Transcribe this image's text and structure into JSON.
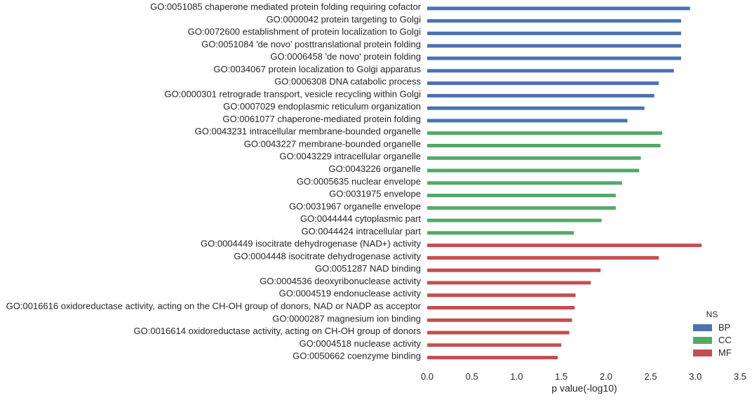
{
  "chart_data": {
    "type": "bar",
    "orientation": "horizontal",
    "xlabel": "p value(-log10)",
    "xlim": [
      0,
      3.5
    ],
    "xticks": [
      "0.0",
      "0.5",
      "1.0",
      "1.5",
      "2.0",
      "2.5",
      "3.0",
      "3.5"
    ],
    "grid": false,
    "legend": {
      "title": "NS",
      "placement": "bottom-right",
      "entries": [
        {
          "name": "BP",
          "color": "#4c72b0"
        },
        {
          "name": "CC",
          "color": "#55a868"
        },
        {
          "name": "MF",
          "color": "#c44e52"
        }
      ]
    },
    "bars": [
      {
        "label": "GO:0051085 chaperone mediated protein folding requiring cofactor",
        "value": 2.94,
        "group": "BP"
      },
      {
        "label": "GO:0000042 protein targeting to Golgi",
        "value": 2.84,
        "group": "BP"
      },
      {
        "label": "GO:0072600 establishment of protein localization to Golgi",
        "value": 2.84,
        "group": "BP"
      },
      {
        "label": "GO:0051084 'de novo' posttranslational protein folding",
        "value": 2.84,
        "group": "BP"
      },
      {
        "label": "GO:0006458 'de novo' protein folding",
        "value": 2.84,
        "group": "BP"
      },
      {
        "label": "GO:0034067 protein localization to Golgi apparatus",
        "value": 2.76,
        "group": "BP"
      },
      {
        "label": "GO:0006308 DNA catabolic process",
        "value": 2.59,
        "group": "BP"
      },
      {
        "label": "GO:0000301 retrograde transport, vesicle recycling within Golgi",
        "value": 2.54,
        "group": "BP"
      },
      {
        "label": "GO:0007029 endoplasmic reticulum organization",
        "value": 2.43,
        "group": "BP"
      },
      {
        "label": "GO:0061077 chaperone-mediated protein folding",
        "value": 2.24,
        "group": "BP"
      },
      {
        "label": "GO:0043231 intracellular membrane-bounded organelle",
        "value": 2.63,
        "group": "CC"
      },
      {
        "label": "GO:0043227 membrane-bounded organelle",
        "value": 2.61,
        "group": "CC"
      },
      {
        "label": "GO:0043229 intracellular organelle",
        "value": 2.39,
        "group": "CC"
      },
      {
        "label": "GO:0043226 organelle",
        "value": 2.37,
        "group": "CC"
      },
      {
        "label": "GO:0005635 nuclear envelope",
        "value": 2.18,
        "group": "CC"
      },
      {
        "label": "GO:0031975 envelope",
        "value": 2.11,
        "group": "CC"
      },
      {
        "label": "GO:0031967 organelle envelope",
        "value": 2.11,
        "group": "CC"
      },
      {
        "label": "GO:0044444 cytoplasmic part",
        "value": 1.95,
        "group": "CC"
      },
      {
        "label": "GO:0044424 intracellular part",
        "value": 1.64,
        "group": "CC"
      },
      {
        "label": "GO:0004449 isocitrate dehydrogenase (NAD+) activity",
        "value": 3.07,
        "group": "MF"
      },
      {
        "label": "GO:0004448 isocitrate dehydrogenase activity",
        "value": 2.59,
        "group": "MF"
      },
      {
        "label": "GO:0051287 NAD binding",
        "value": 1.94,
        "group": "MF"
      },
      {
        "label": "GO:0004536 deoxyribonuclease activity",
        "value": 1.83,
        "group": "MF"
      },
      {
        "label": "GO:0004519 endonuclease activity",
        "value": 1.66,
        "group": "MF"
      },
      {
        "label": "GO:0016616 oxidoreductase activity, acting on the CH-OH group of donors, NAD or NADP as acceptor",
        "value": 1.65,
        "group": "MF"
      },
      {
        "label": "GO:0000287 magnesium ion binding",
        "value": 1.62,
        "group": "MF"
      },
      {
        "label": "GO:0016614 oxidoreductase activity, acting on CH-OH group of donors",
        "value": 1.59,
        "group": "MF"
      },
      {
        "label": "GO:0004518 nuclease activity",
        "value": 1.5,
        "group": "MF"
      },
      {
        "label": "GO:0050662 coenzyme binding",
        "value": 1.46,
        "group": "MF"
      }
    ]
  }
}
